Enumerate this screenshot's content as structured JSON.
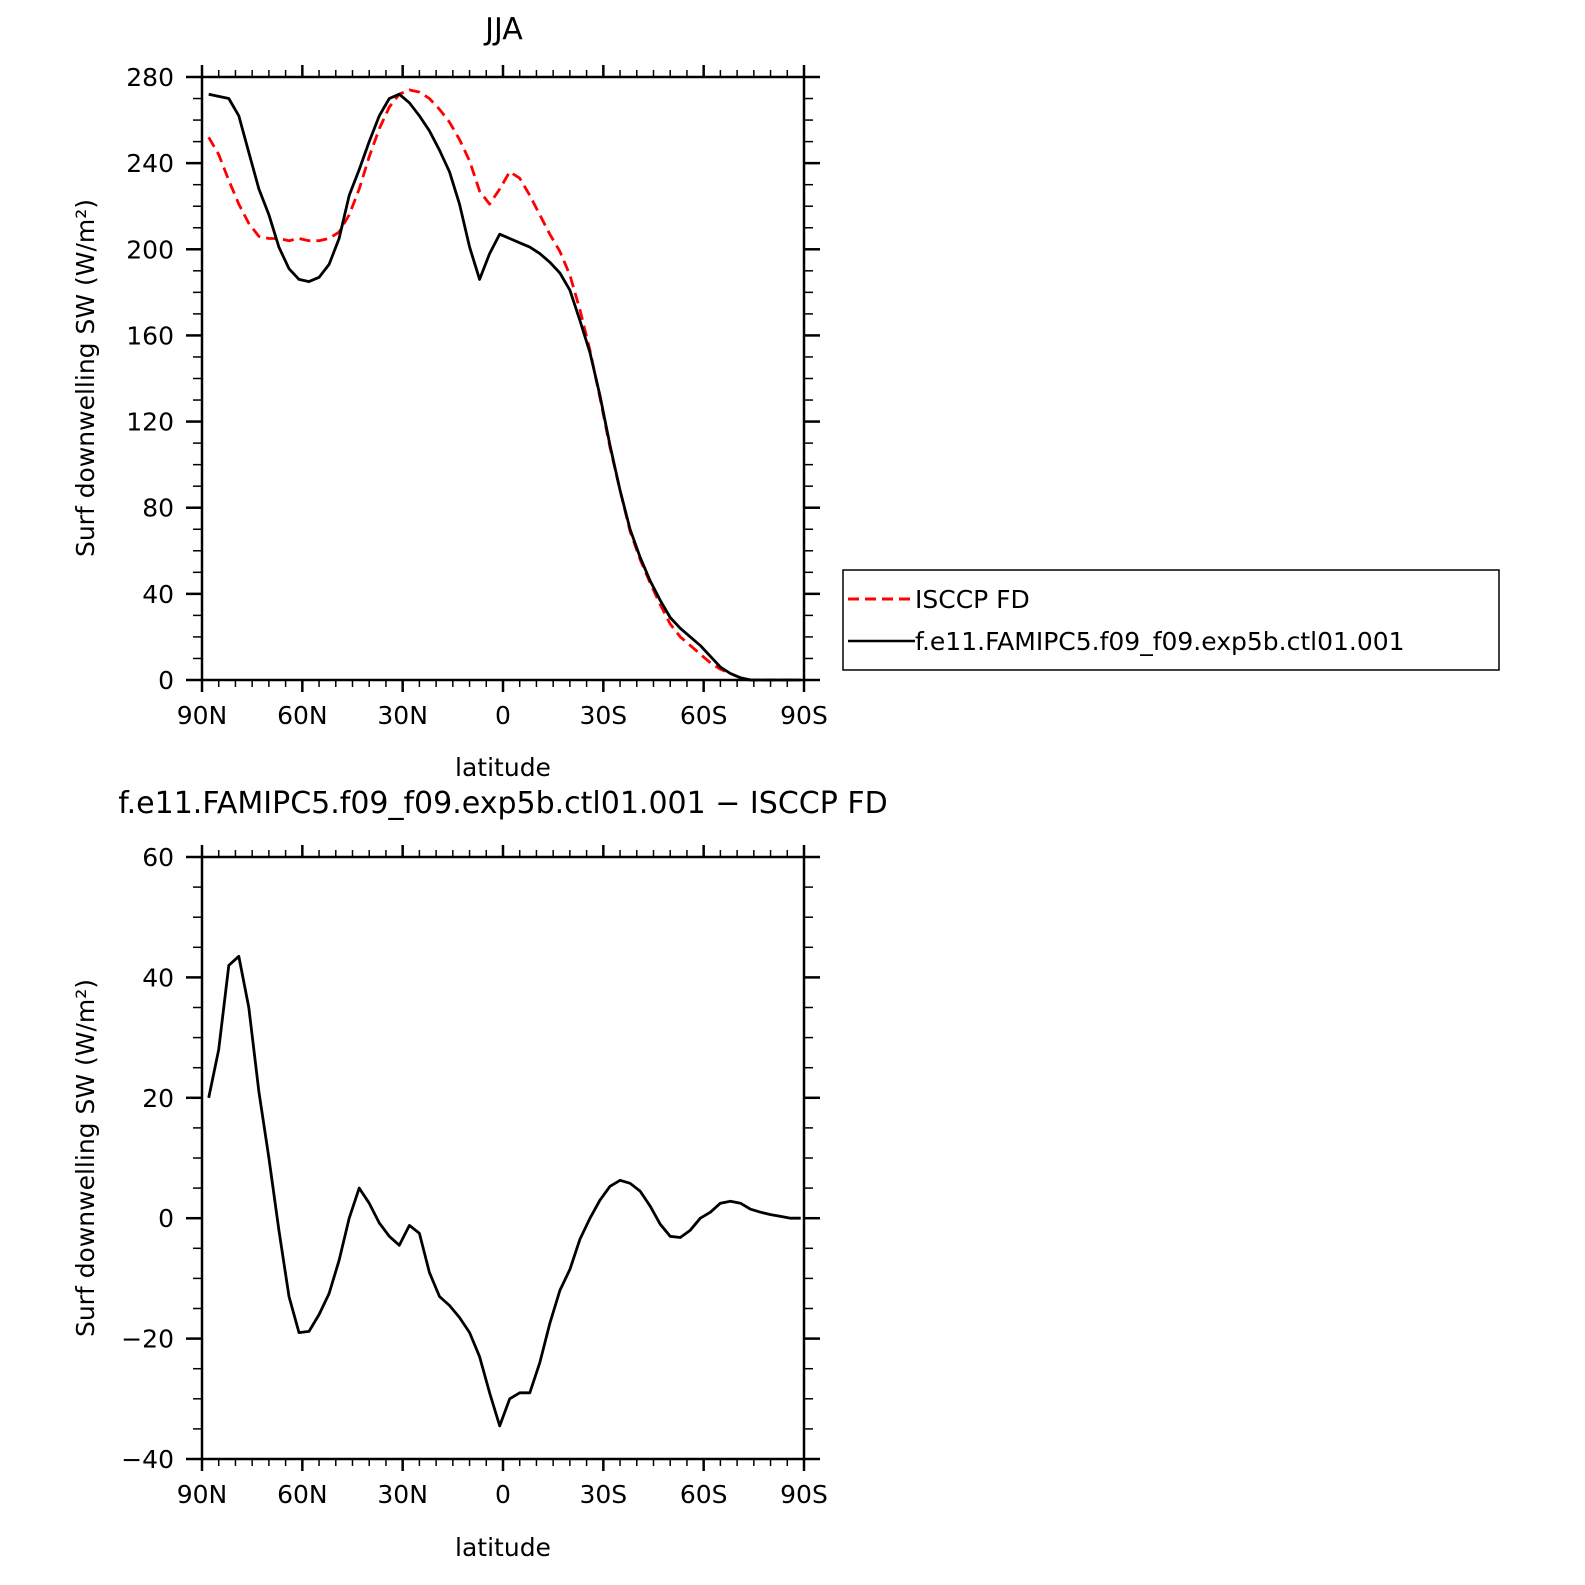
{
  "chart_data": [
    {
      "type": "line",
      "title": "JJA",
      "xlabel": "latitude",
      "ylabel": "Surf downwelling SW (W/m²)",
      "xlim": [
        90,
        -90
      ],
      "ylim": [
        0,
        280
      ],
      "xticks": [
        90,
        60,
        30,
        0,
        -30,
        -60,
        -90
      ],
      "xticklabels": [
        "90N",
        "60N",
        "30N",
        "0",
        "30S",
        "60S",
        "90S"
      ],
      "yticks": [
        0,
        40,
        80,
        120,
        160,
        200,
        240,
        280
      ],
      "yticklabels": [
        "0",
        "40",
        "80",
        "120",
        "160",
        "200",
        "240",
        "280"
      ],
      "legend_position": "right",
      "series": [
        {
          "name": "ISCCP FD",
          "color": "#ff0000",
          "style": "dashed",
          "x": [
            88,
            85,
            82,
            79,
            76,
            73,
            70,
            67,
            64,
            61,
            58,
            55,
            52,
            49,
            46,
            43,
            40,
            37,
            34,
            31,
            28,
            25,
            22,
            19,
            16,
            13,
            10,
            7,
            4,
            1,
            -2,
            -5,
            -8,
            -11,
            -14,
            -17,
            -20,
            -23,
            -26,
            -29,
            -32,
            -35,
            -38,
            -41,
            -44,
            -47,
            -50,
            -53,
            -56,
            -59,
            -62,
            -65,
            -68,
            -71,
            -74,
            -77,
            -80,
            -83,
            -86,
            -89
          ],
          "y": [
            252,
            244,
            232,
            221,
            212,
            206,
            205,
            205,
            204,
            205,
            204,
            204,
            205,
            208,
            216,
            228,
            243,
            256,
            266,
            272,
            274,
            273,
            270,
            265,
            259,
            251,
            241,
            227,
            221,
            228,
            236,
            233,
            225,
            216,
            207,
            199,
            188,
            172,
            153,
            131,
            108,
            88,
            69,
            56,
            45,
            35,
            26,
            20,
            16,
            12,
            8,
            5,
            3,
            1,
            0,
            0,
            0,
            0,
            0,
            0
          ]
        },
        {
          "name": "f.e11.FAMIPC5.f09_f09.exp5b.ctl01.001",
          "color": "#000000",
          "style": "solid",
          "x": [
            88,
            85,
            82,
            79,
            76,
            73,
            70,
            67,
            64,
            61,
            58,
            55,
            52,
            49,
            46,
            43,
            40,
            37,
            34,
            31,
            28,
            25,
            22,
            19,
            16,
            13,
            10,
            7,
            4,
            1,
            -2,
            -5,
            -8,
            -11,
            -14,
            -17,
            -20,
            -23,
            -26,
            -29,
            -32,
            -35,
            -38,
            -41,
            -44,
            -47,
            -50,
            -53,
            -56,
            -59,
            -62,
            -65,
            -68,
            -71,
            -74,
            -77,
            -80,
            -83,
            -86,
            -89
          ],
          "y": [
            272,
            271,
            270,
            262,
            245,
            228,
            216,
            201,
            191,
            186,
            185,
            187,
            193,
            205,
            225,
            237,
            250,
            262,
            270,
            272,
            268,
            262,
            255,
            246,
            236,
            221,
            201,
            186,
            198,
            207,
            205,
            203,
            201,
            198,
            194,
            189,
            181,
            167,
            152,
            132,
            109,
            88,
            70,
            57,
            46,
            37,
            29,
            24,
            20,
            16,
            11,
            6,
            3,
            1,
            0,
            0,
            0,
            0,
            0,
            0
          ]
        }
      ]
    },
    {
      "type": "line",
      "title": "f.e11.FAMIPC5.f09_f09.exp5b.ctl01.001 − ISCCP FD",
      "xlabel": "latitude",
      "ylabel": "Surf downwelling SW (W/m²)",
      "xlim": [
        90,
        -90
      ],
      "ylim": [
        -40,
        60
      ],
      "xticks": [
        90,
        60,
        30,
        0,
        -30,
        -60,
        -90
      ],
      "xticklabels": [
        "90N",
        "60N",
        "30N",
        "0",
        "30S",
        "60S",
        "90S"
      ],
      "yticks": [
        -40,
        -20,
        0,
        20,
        40,
        60
      ],
      "yticklabels": [
        "−40",
        "−20",
        "0",
        "20",
        "40",
        "60"
      ],
      "series": [
        {
          "color": "#000000",
          "style": "solid",
          "x": [
            88,
            85,
            82,
            79,
            76,
            73,
            70,
            67,
            64,
            61,
            58,
            55,
            52,
            49,
            46,
            43,
            40,
            37,
            34,
            31,
            28,
            25,
            22,
            19,
            16,
            13,
            10,
            7,
            4,
            1,
            -2,
            -5,
            -8,
            -11,
            -14,
            -17,
            -20,
            -23,
            -26,
            -29,
            -32,
            -35,
            -38,
            -41,
            -44,
            -47,
            -50,
            -53,
            -56,
            -59,
            -62,
            -65,
            -68,
            -71,
            -74,
            -77,
            -80,
            -83,
            -86,
            -89
          ],
          "y": [
            20,
            28,
            42,
            43.5,
            35,
            21,
            10,
            -2,
            -13,
            -19,
            -18.8,
            -16,
            -12.5,
            -7,
            0,
            5,
            2.5,
            -0.8,
            -3,
            -4.5,
            -1.2,
            -2.5,
            -9,
            -13,
            -14.5,
            -16.5,
            -19,
            -23,
            -29,
            -34.5,
            -30,
            -29,
            -29,
            -24,
            -17.5,
            -12,
            -8.5,
            -3.5,
            0,
            3,
            5.3,
            6.3,
            5.8,
            4.5,
            2,
            -1,
            -3,
            -3.2,
            -2,
            0,
            1,
            2.5,
            2.8,
            2.5,
            1.5,
            1,
            0.6,
            0.3,
            0,
            0
          ]
        }
      ]
    }
  ]
}
